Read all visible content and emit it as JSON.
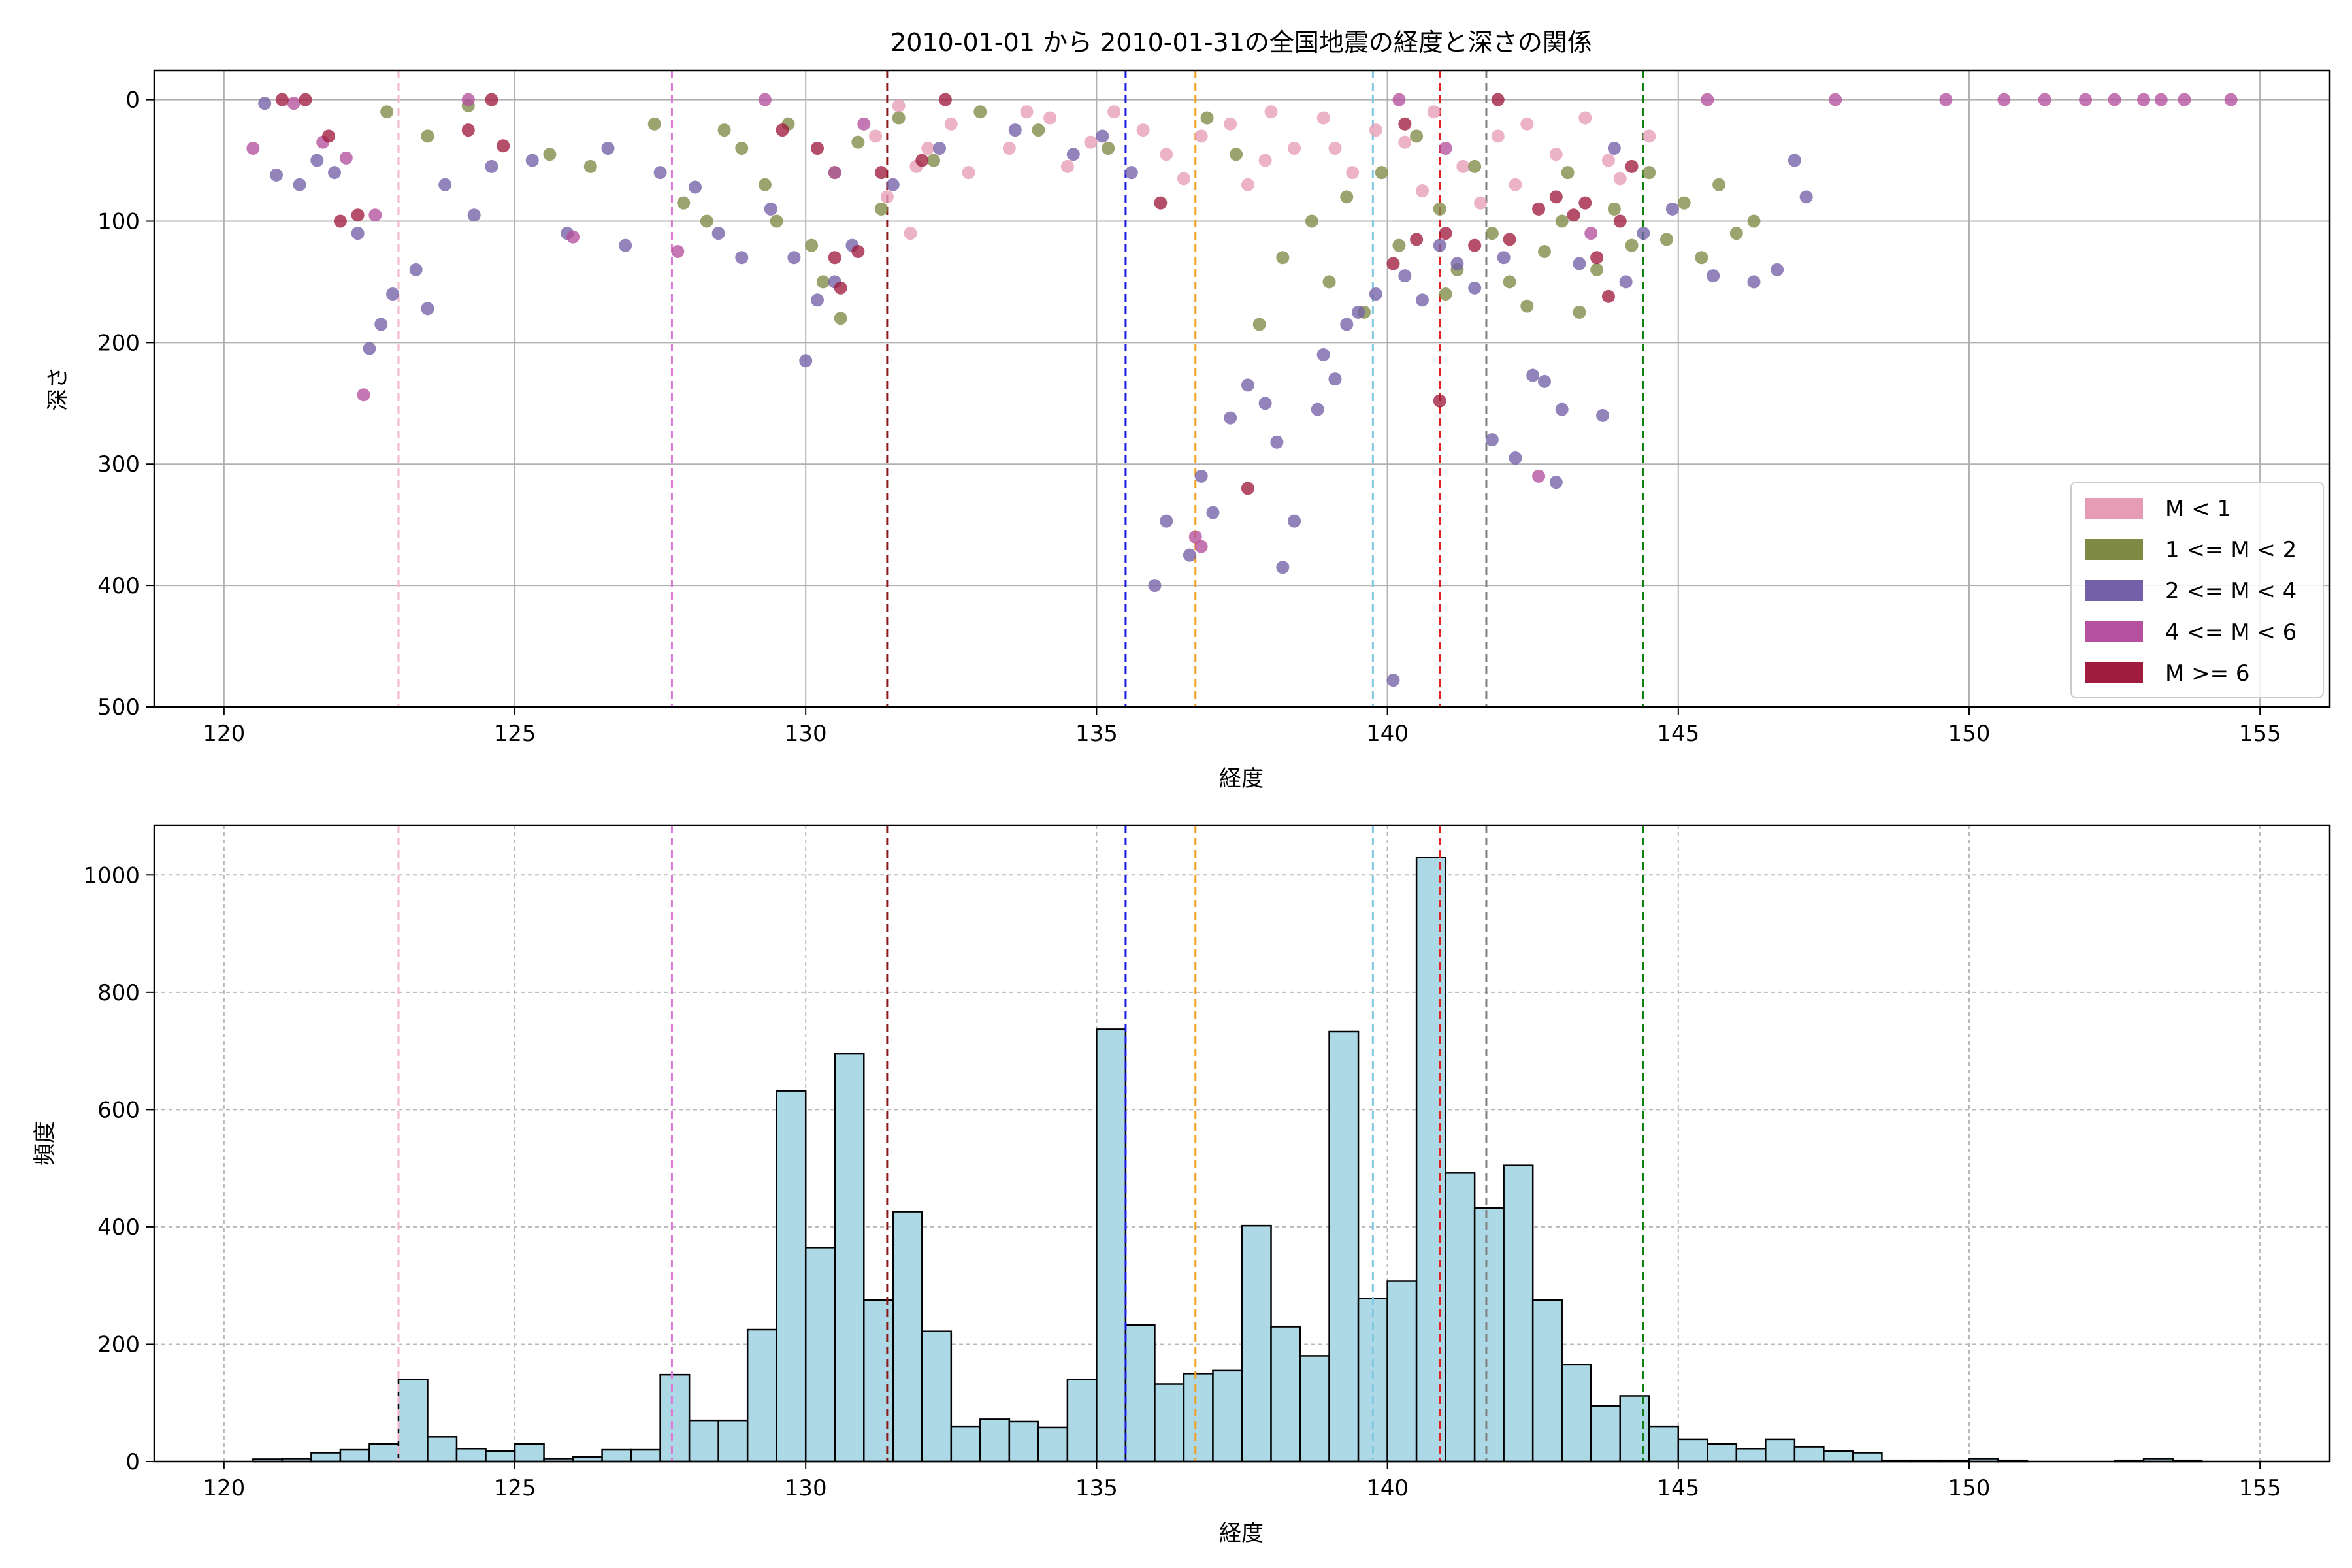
{
  "chart_data": [
    {
      "type": "scatter",
      "title": "2010-01-01 から 2010-01-31の全国地震の経度と深さの関係",
      "xlabel": "経度",
      "ylabel": "深さ",
      "xlim": [
        118.8,
        156.2
      ],
      "ylim": [
        500,
        -24
      ],
      "y_inverted": true,
      "xticks": [
        120,
        125,
        130,
        135,
        140,
        145,
        150,
        155
      ],
      "yticks": [
        0,
        100,
        200,
        300,
        400,
        500
      ],
      "grid": true,
      "legend_position": "lower-right",
      "series": [
        {
          "name": "M < 1",
          "color": "#e79cb6",
          "points": [
            [
              131.6,
              5
            ],
            [
              131.2,
              30
            ],
            [
              131.9,
              55
            ],
            [
              132.5,
              20
            ],
            [
              133.5,
              40
            ],
            [
              134.2,
              15
            ],
            [
              134.9,
              35
            ],
            [
              135.3,
              10
            ],
            [
              135.8,
              25
            ],
            [
              136.2,
              45
            ],
            [
              136.8,
              30
            ],
            [
              137.3,
              20
            ],
            [
              137.9,
              50
            ],
            [
              138.4,
              40
            ],
            [
              138.9,
              15
            ],
            [
              139.4,
              60
            ],
            [
              139.8,
              25
            ],
            [
              140.3,
              35
            ],
            [
              140.8,
              10
            ],
            [
              141.3,
              55
            ],
            [
              141.9,
              30
            ],
            [
              142.4,
              20
            ],
            [
              142.9,
              45
            ],
            [
              143.4,
              15
            ],
            [
              144.0,
              65
            ],
            [
              144.5,
              30
            ],
            [
              134.5,
              55
            ],
            [
              133.8,
              10
            ],
            [
              132.8,
              60
            ],
            [
              137.6,
              70
            ],
            [
              139.1,
              40
            ],
            [
              140.6,
              75
            ],
            [
              141.6,
              85
            ],
            [
              143.8,
              50
            ],
            [
              131.4,
              80
            ],
            [
              131.8,
              110
            ],
            [
              132.1,
              40
            ],
            [
              136.5,
              65
            ],
            [
              138.0,
              10
            ],
            [
              142.2,
              70
            ]
          ]
        },
        {
          "name": "1 <= M < 2",
          "color": "#7f8b45",
          "points": [
            [
              122.8,
              10
            ],
            [
              123.5,
              30
            ],
            [
              124.2,
              5
            ],
            [
              125.6,
              45
            ],
            [
              126.3,
              55
            ],
            [
              127.4,
              20
            ],
            [
              127.9,
              85
            ],
            [
              128.3,
              100
            ],
            [
              128.9,
              40
            ],
            [
              129.3,
              70
            ],
            [
              129.7,
              20
            ],
            [
              130.1,
              120
            ],
            [
              130.3,
              150
            ],
            [
              130.5,
              60
            ],
            [
              130.9,
              35
            ],
            [
              131.3,
              90
            ],
            [
              131.6,
              15
            ],
            [
              132.2,
              50
            ],
            [
              133.0,
              10
            ],
            [
              134.0,
              25
            ],
            [
              135.2,
              40
            ],
            [
              136.9,
              15
            ],
            [
              137.4,
              45
            ],
            [
              137.8,
              185
            ],
            [
              138.2,
              130
            ],
            [
              138.7,
              100
            ],
            [
              139.0,
              150
            ],
            [
              139.3,
              80
            ],
            [
              139.6,
              175
            ],
            [
              139.9,
              60
            ],
            [
              140.2,
              120
            ],
            [
              140.5,
              30
            ],
            [
              140.9,
              90
            ],
            [
              141.2,
              140
            ],
            [
              141.5,
              55
            ],
            [
              141.8,
              110
            ],
            [
              142.1,
              150
            ],
            [
              142.4,
              170
            ],
            [
              142.7,
              125
            ],
            [
              143.0,
              100
            ],
            [
              143.3,
              175
            ],
            [
              143.6,
              140
            ],
            [
              143.9,
              90
            ],
            [
              144.2,
              120
            ],
            [
              144.5,
              60
            ],
            [
              144.8,
              115
            ],
            [
              145.1,
              85
            ],
            [
              145.4,
              130
            ],
            [
              145.7,
              70
            ],
            [
              146.0,
              110
            ],
            [
              146.3,
              100
            ],
            [
              130.6,
              180
            ],
            [
              129.5,
              100
            ],
            [
              128.6,
              25
            ],
            [
              141.0,
              160
            ],
            [
              143.1,
              60
            ]
          ]
        },
        {
          "name": "2 <= M < 4",
          "color": "#7460a8",
          "points": [
            [
              120.7,
              3
            ],
            [
              120.9,
              62
            ],
            [
              121.3,
              70
            ],
            [
              121.6,
              50
            ],
            [
              121.9,
              60
            ],
            [
              122.3,
              110
            ],
            [
              122.5,
              205
            ],
            [
              122.7,
              185
            ],
            [
              122.9,
              160
            ],
            [
              123.3,
              140
            ],
            [
              123.5,
              172
            ],
            [
              123.8,
              70
            ],
            [
              124.3,
              95
            ],
            [
              124.6,
              55
            ],
            [
              125.3,
              50
            ],
            [
              125.9,
              110
            ],
            [
              126.6,
              40
            ],
            [
              126.9,
              120
            ],
            [
              127.5,
              60
            ],
            [
              128.1,
              72
            ],
            [
              128.5,
              110
            ],
            [
              128.9,
              130
            ],
            [
              129.4,
              90
            ],
            [
              129.8,
              130
            ],
            [
              130.0,
              215
            ],
            [
              130.2,
              165
            ],
            [
              130.5,
              150
            ],
            [
              130.8,
              120
            ],
            [
              131.5,
              70
            ],
            [
              132.3,
              40
            ],
            [
              133.6,
              25
            ],
            [
              134.6,
              45
            ],
            [
              135.1,
              30
            ],
            [
              135.6,
              60
            ],
            [
              136.0,
              400
            ],
            [
              136.2,
              347
            ],
            [
              136.6,
              375
            ],
            [
              136.8,
              310
            ],
            [
              137.0,
              340
            ],
            [
              137.3,
              262
            ],
            [
              137.6,
              235
            ],
            [
              137.9,
              250
            ],
            [
              138.1,
              282
            ],
            [
              138.2,
              385
            ],
            [
              138.4,
              347
            ],
            [
              138.8,
              255
            ],
            [
              139.1,
              230
            ],
            [
              139.5,
              175
            ],
            [
              139.8,
              160
            ],
            [
              140.1,
              478
            ],
            [
              140.3,
              145
            ],
            [
              140.6,
              165
            ],
            [
              140.9,
              120
            ],
            [
              141.2,
              135
            ],
            [
              141.5,
              155
            ],
            [
              141.8,
              280
            ],
            [
              142.2,
              295
            ],
            [
              142.5,
              227
            ],
            [
              142.7,
              232
            ],
            [
              142.9,
              315
            ],
            [
              143.0,
              255
            ],
            [
              143.3,
              135
            ],
            [
              143.7,
              260
            ],
            [
              144.1,
              150
            ],
            [
              144.4,
              110
            ],
            [
              144.9,
              90
            ],
            [
              145.6,
              145
            ],
            [
              146.3,
              150
            ],
            [
              146.7,
              140
            ],
            [
              147.2,
              80
            ],
            [
              147.0,
              50
            ],
            [
              143.9,
              40
            ],
            [
              142.0,
              130
            ],
            [
              138.9,
              210
            ],
            [
              139.3,
              185
            ]
          ]
        },
        {
          "name": "4 <= M < 6",
          "color": "#b5519e",
          "points": [
            [
              120.5,
              40
            ],
            [
              121.2,
              3
            ],
            [
              121.7,
              35
            ],
            [
              122.1,
              48
            ],
            [
              122.4,
              243
            ],
            [
              122.6,
              95
            ],
            [
              124.2,
              0
            ],
            [
              126.0,
              113
            ],
            [
              127.8,
              125
            ],
            [
              129.3,
              0
            ],
            [
              130.5,
              60
            ],
            [
              131.0,
              20
            ],
            [
              136.7,
              360
            ],
            [
              136.8,
              368
            ],
            [
              140.2,
              0
            ],
            [
              141.0,
              40
            ],
            [
              142.6,
              310
            ],
            [
              143.5,
              110
            ],
            [
              145.5,
              0
            ],
            [
              147.7,
              0
            ],
            [
              149.6,
              0
            ],
            [
              150.6,
              0
            ],
            [
              151.3,
              0
            ],
            [
              152.0,
              0
            ],
            [
              152.5,
              0
            ],
            [
              153.0,
              0
            ],
            [
              153.3,
              0
            ],
            [
              153.7,
              0
            ],
            [
              154.5,
              0
            ]
          ]
        },
        {
          "name": "M >= 6",
          "color": "#a01c3e",
          "points": [
            [
              121.0,
              0
            ],
            [
              121.4,
              0
            ],
            [
              121.8,
              30
            ],
            [
              122.0,
              100
            ],
            [
              122.3,
              95
            ],
            [
              124.2,
              25
            ],
            [
              124.6,
              0
            ],
            [
              124.8,
              38
            ],
            [
              129.6,
              25
            ],
            [
              130.2,
              40
            ],
            [
              130.5,
              130
            ],
            [
              130.6,
              155
            ],
            [
              130.9,
              125
            ],
            [
              131.3,
              60
            ],
            [
              132.0,
              50
            ],
            [
              136.1,
              85
            ],
            [
              137.6,
              320
            ],
            [
              140.1,
              135
            ],
            [
              140.5,
              115
            ],
            [
              140.9,
              248
            ],
            [
              141.0,
              110
            ],
            [
              141.5,
              120
            ],
            [
              141.9,
              0
            ],
            [
              142.1,
              115
            ],
            [
              142.6,
              90
            ],
            [
              142.9,
              80
            ],
            [
              143.2,
              95
            ],
            [
              143.4,
              85
            ],
            [
              143.6,
              130
            ],
            [
              143.8,
              162
            ],
            [
              144.0,
              100
            ],
            [
              144.2,
              55
            ],
            [
              140.3,
              20
            ],
            [
              132.4,
              0
            ]
          ]
        }
      ],
      "vlines": [
        {
          "x": 123.0,
          "color": "#f4b6c8"
        },
        {
          "x": 127.7,
          "color": "#dd77d6"
        },
        {
          "x": 131.4,
          "color": "#8a1a1a"
        },
        {
          "x": 135.5,
          "color": "#1a1ae0"
        },
        {
          "x": 136.7,
          "color": "#f0a020"
        },
        {
          "x": 139.75,
          "color": "#80c8e0"
        },
        {
          "x": 140.9,
          "color": "#e02020"
        },
        {
          "x": 141.7,
          "color": "#808080"
        },
        {
          "x": 144.4,
          "color": "#108010"
        }
      ]
    },
    {
      "type": "bar",
      "subtype": "histogram",
      "xlabel": "経度",
      "ylabel": "頻度",
      "xlim": [
        118.8,
        156.2
      ],
      "ylim": [
        0,
        1085
      ],
      "xticks": [
        120,
        125,
        130,
        135,
        140,
        145,
        150,
        155
      ],
      "yticks": [
        0,
        200,
        400,
        600,
        800,
        1000
      ],
      "grid": true,
      "bar_color": "#add8e6",
      "bin_start": 120.5,
      "bin_width": 0.5,
      "values": [
        4,
        5,
        15,
        20,
        30,
        140,
        42,
        22,
        18,
        30,
        5,
        8,
        20,
        20,
        148,
        70,
        70,
        225,
        632,
        365,
        695,
        275,
        426,
        222,
        60,
        72,
        68,
        58,
        140,
        737,
        233,
        132,
        150,
        155,
        402,
        230,
        180,
        733,
        278,
        308,
        1030,
        492,
        432,
        505,
        275,
        165,
        95,
        112,
        60,
        38,
        30,
        22,
        38,
        25,
        18,
        15,
        2,
        2,
        2,
        5,
        2,
        0,
        0,
        0,
        2,
        5,
        2,
        0,
        0
      ]
    }
  ]
}
